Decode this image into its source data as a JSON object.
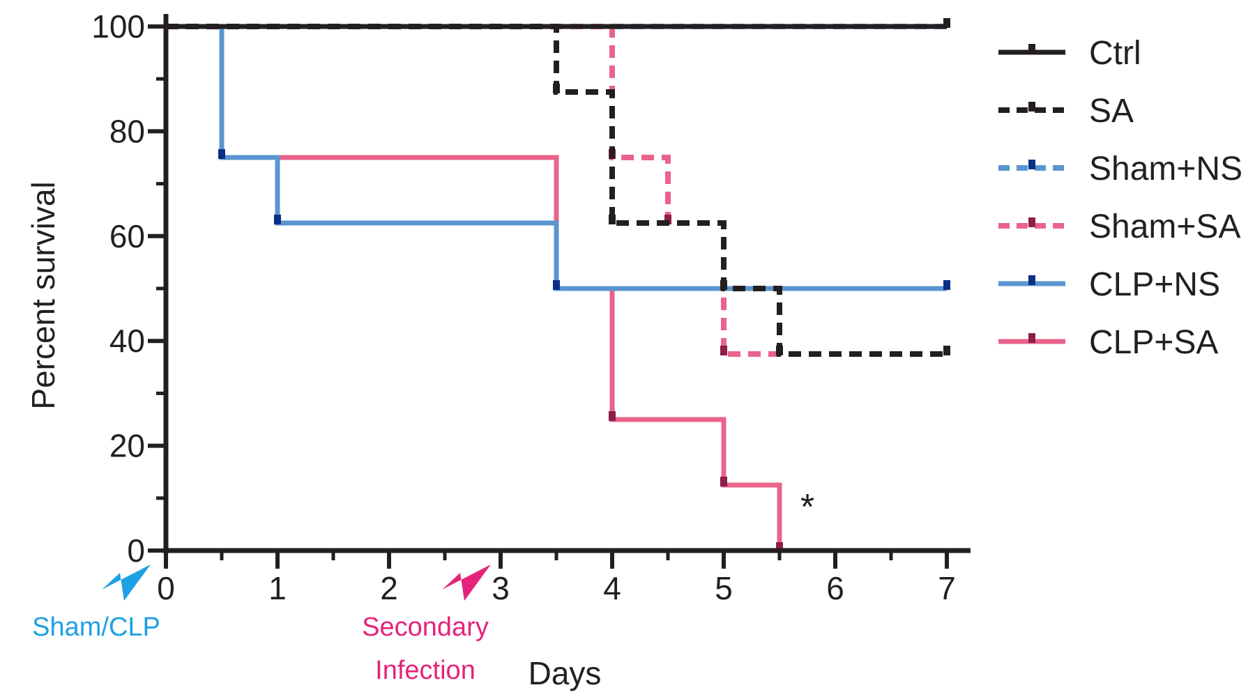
{
  "chart_data": {
    "type": "line",
    "subtype": "kaplan-meier step",
    "title": "",
    "xlabel": "Days",
    "ylabel": "Percent survival",
    "xlim": [
      0,
      7
    ],
    "ylim": [
      0,
      100
    ],
    "xticks": [
      "0",
      "1",
      "2",
      "3",
      "4",
      "5",
      "6",
      "7"
    ],
    "yticks": [
      "0",
      "20",
      "40",
      "60",
      "80",
      "100"
    ],
    "grid": false,
    "legend_position": "right",
    "series": [
      {
        "name": "Ctrl",
        "color": "#231f20",
        "style": "solid",
        "points": [
          [
            0,
            100
          ],
          [
            7,
            100
          ]
        ]
      },
      {
        "name": "SA",
        "color": "#231f20",
        "style": "dashed",
        "points": [
          [
            0,
            100
          ],
          [
            3.5,
            100
          ],
          [
            3.5,
            87.5
          ],
          [
            4,
            87.5
          ],
          [
            4,
            62.5
          ],
          [
            5,
            62.5
          ],
          [
            5,
            50
          ],
          [
            5.5,
            50
          ],
          [
            5.5,
            37.5
          ],
          [
            7,
            37.5
          ]
        ]
      },
      {
        "name": "Sham+NS",
        "color": "#5b95d1",
        "style": "dashed",
        "points": [
          [
            0,
            100
          ],
          [
            7,
            100
          ]
        ]
      },
      {
        "name": "Sham+SA",
        "color": "#e9638a",
        "style": "dashed",
        "points": [
          [
            0,
            100
          ],
          [
            4,
            100
          ],
          [
            4,
            75
          ],
          [
            4.5,
            75
          ],
          [
            4.5,
            62.5
          ],
          [
            5,
            62.5
          ],
          [
            5,
            37.5
          ],
          [
            5.5,
            37.5
          ]
        ]
      },
      {
        "name": "CLP+NS",
        "color": "#5b95d1",
        "style": "solid",
        "points": [
          [
            0,
            100
          ],
          [
            0.5,
            100
          ],
          [
            0.5,
            75
          ],
          [
            1,
            75
          ],
          [
            1,
            62.5
          ],
          [
            3.5,
            62.5
          ],
          [
            3.5,
            50
          ],
          [
            7,
            50
          ]
        ]
      },
      {
        "name": "CLP+SA",
        "color": "#e9638a",
        "style": "solid",
        "points": [
          [
            0,
            100
          ],
          [
            0.5,
            100
          ],
          [
            0.5,
            75
          ],
          [
            3.5,
            75
          ],
          [
            3.5,
            50
          ],
          [
            4,
            50
          ],
          [
            4,
            25
          ],
          [
            5,
            25
          ],
          [
            5,
            12.5
          ],
          [
            5.5,
            12.5
          ],
          [
            5.5,
            0
          ]
        ]
      }
    ],
    "annotations": [
      {
        "text": "*",
        "x": 5.75,
        "y": 6,
        "color": "#231f20"
      },
      {
        "text": "Sham/CLP",
        "at_day": 0,
        "color": "#1ea0e4"
      },
      {
        "text": "Secondary\nInfection",
        "at_day": 3,
        "color": "#e5237a"
      }
    ]
  }
}
